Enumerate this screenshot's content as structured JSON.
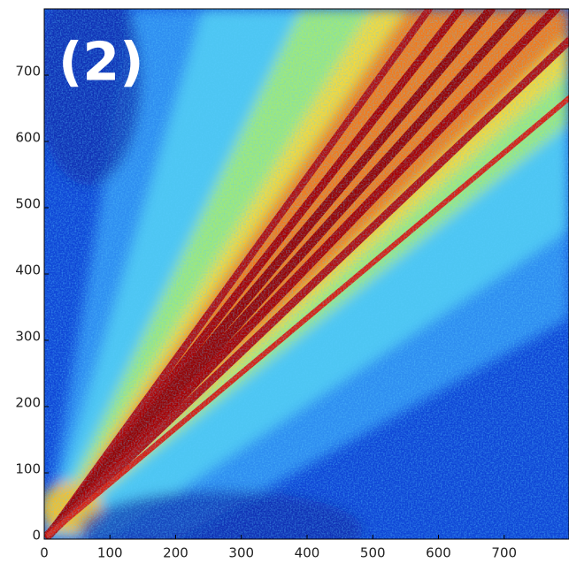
{
  "chart_data": {
    "type": "heatmap",
    "annotation": "(2)",
    "xlim": [
      0,
      800
    ],
    "ylim": [
      0,
      800
    ],
    "xticks": [
      0,
      100,
      200,
      300,
      400,
      500,
      600,
      700
    ],
    "yticks": [
      0,
      100,
      200,
      300,
      400,
      500,
      600,
      700
    ]
  }
}
